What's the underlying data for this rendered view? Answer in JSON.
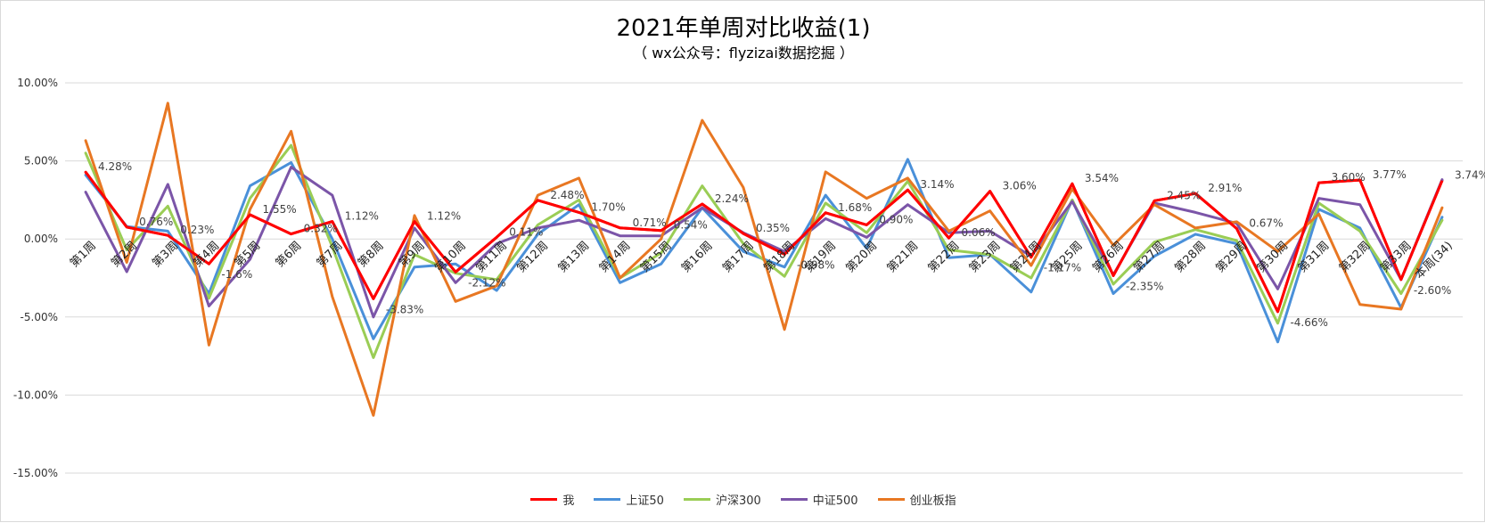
{
  "chart_data": {
    "type": "line",
    "title": "2021年单周对比收益(1)",
    "subtitle": "（ wx公众号：flyzizai数据挖掘 ）",
    "ylim": [
      -0.15,
      0.1
    ],
    "yticks": [
      "10.00%",
      "5.00%",
      "0.00%",
      "-5.00%",
      "-10.00%",
      "-15.00%"
    ],
    "grid": true,
    "legend_position": "bottom",
    "categories": [
      "第1周",
      "第2周",
      "第3周",
      "第4周",
      "第5周",
      "第6周",
      "第7周",
      "第8周",
      "第9周",
      "第10周",
      "第11周",
      "第12周",
      "第13周",
      "第14周",
      "第15周",
      "第16周",
      "第17周",
      "第18周",
      "第19周",
      "第20周",
      "第21周",
      "第22周",
      "第23周",
      "第24周",
      "第25周",
      "第26周",
      "第27周",
      "第28周",
      "第29周",
      "第30周",
      "第31周",
      "第32周",
      "第33周",
      "本周(34)"
    ],
    "series": [
      {
        "name": "我",
        "color": "#ff0000",
        "values": [
          4.28,
          0.76,
          0.23,
          -1.6,
          1.55,
          0.32,
          1.12,
          -3.83,
          1.12,
          -2.12,
          0.11,
          2.48,
          1.7,
          0.71,
          0.54,
          2.24,
          0.35,
          -0.98,
          1.68,
          0.9,
          3.14,
          0.06,
          3.06,
          -1.17,
          3.54,
          -2.35,
          2.45,
          2.91,
          0.67,
          -4.66,
          3.6,
          3.77,
          -2.6,
          3.74
        ],
        "labels": [
          "4.28%",
          "0.76%",
          "0.23%",
          "-1.6%",
          "1.55%",
          "0.32%",
          "1.12%",
          "-3.83%",
          "1.12%",
          "-2.12%",
          "0.11%",
          "2.48%",
          "1.70%",
          "0.71%",
          "0.54%",
          "2.24%",
          "0.35%",
          "-0.98%",
          "1.68%",
          "0.90%",
          "3.14%",
          "0.06%",
          "3.06%",
          "-1.17%",
          "3.54%",
          "-2.35%",
          "2.45%",
          "2.91%",
          "0.67%",
          "-4.66%",
          "3.60%",
          "3.77%",
          "-2.60%",
          "3.74%"
        ]
      },
      {
        "name": "上证50",
        "color": "#4a90d9",
        "values": [
          4.1,
          0.8,
          0.5,
          -3.5,
          3.4,
          4.9,
          0.0,
          -6.4,
          -1.8,
          -1.6,
          -3.3,
          0.3,
          2.2,
          -2.8,
          -1.6,
          2.0,
          -0.8,
          -1.8,
          2.8,
          -0.6,
          5.1,
          -1.2,
          -1.0,
          -3.4,
          2.5,
          -3.5,
          -1.1,
          0.3,
          -0.3,
          -6.6,
          1.9,
          0.7,
          -4.4,
          1.4
        ]
      },
      {
        "name": "沪深300",
        "color": "#9acd55",
        "values": [
          5.5,
          -0.7,
          2.1,
          -3.8,
          2.6,
          6.0,
          -0.5,
          -7.6,
          -1.0,
          -2.2,
          -2.6,
          0.9,
          2.5,
          -2.5,
          -0.9,
          3.4,
          -0.3,
          -2.4,
          2.3,
          0.4,
          3.7,
          -0.7,
          -1.0,
          -2.5,
          2.5,
          -2.9,
          -0.2,
          0.6,
          -0.1,
          -5.4,
          2.3,
          0.5,
          -3.5,
          1.2
        ]
      },
      {
        "name": "中证500",
        "color": "#7b55a8",
        "values": [
          3.0,
          -2.1,
          3.5,
          -4.3,
          -1.3,
          4.6,
          2.8,
          -5.0,
          0.7,
          -2.8,
          -0.3,
          0.7,
          1.2,
          0.2,
          0.2,
          2.0,
          0.4,
          -0.8,
          1.3,
          0.1,
          2.2,
          0.4,
          0.5,
          -1.1,
          2.4,
          -2.3,
          2.3,
          1.7,
          1.0,
          -3.2,
          2.6,
          2.2,
          -2.6,
          3.8
        ]
      },
      {
        "name": "创业板指",
        "color": "#e87722",
        "values": [
          6.3,
          -1.5,
          8.7,
          -6.8,
          1.9,
          6.9,
          -3.7,
          -11.3,
          1.5,
          -4.0,
          -3.0,
          2.8,
          3.9,
          -2.5,
          0.0,
          7.6,
          3.3,
          -5.8,
          4.3,
          2.6,
          3.9,
          0.5,
          1.8,
          -1.7,
          3.2,
          -0.4,
          2.2,
          0.7,
          1.1,
          -0.8,
          1.6,
          -4.2,
          -4.5,
          2.0
        ]
      }
    ]
  }
}
